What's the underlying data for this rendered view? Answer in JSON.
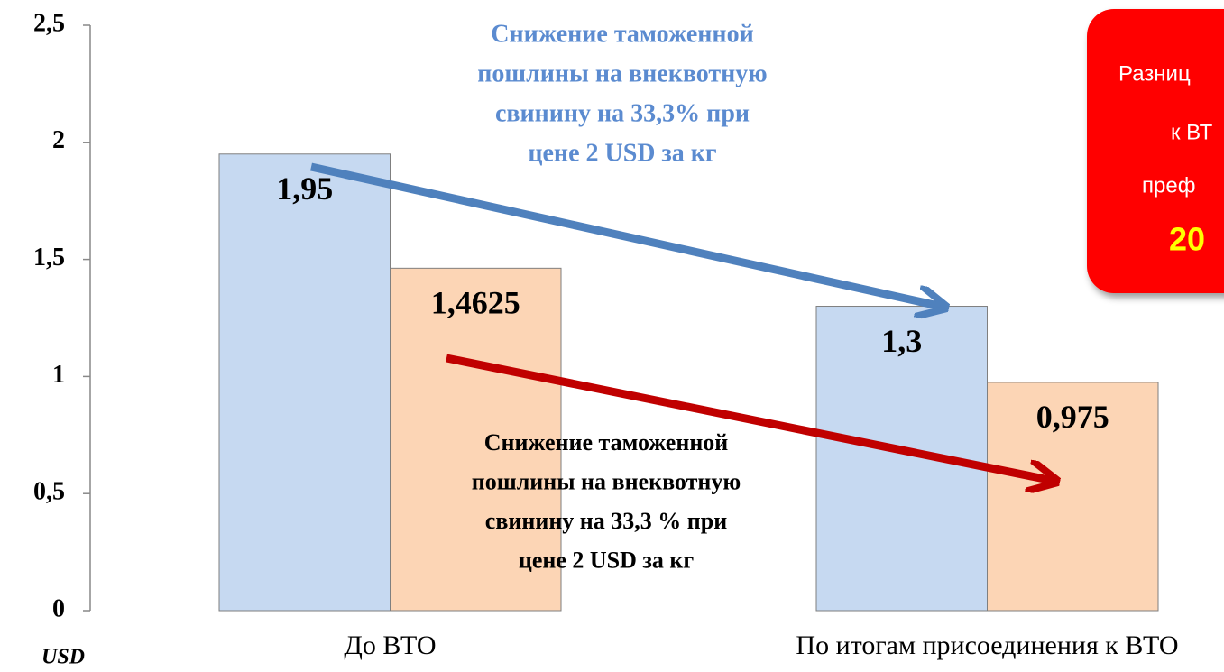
{
  "chart_data": {
    "type": "bar",
    "categories": [
      "До ВТО",
      "По итогам присоединения к ВТО"
    ],
    "series": [
      {
        "color": "#c6d9f1",
        "values": [
          1.95,
          1.3
        ],
        "value_labels": [
          "1,95",
          "1,3"
        ]
      },
      {
        "color": "#fcd5b5",
        "values": [
          1.4625,
          0.975
        ],
        "value_labels": [
          "1,4625",
          "0,975"
        ]
      }
    ],
    "ylim": [
      0,
      2.5
    ],
    "yticks": [
      0,
      {
        "value": 0.5,
        "label": "0,5"
      },
      1,
      {
        "value": 1.5,
        "label": "1,5"
      },
      2,
      {
        "value": 2.5,
        "label": "2,5"
      }
    ],
    "y_label": "USD",
    "annotations": [
      {
        "color": "#5b8bd0",
        "lines": [
          "Снижение таможенной",
          "пошлины на внеквотную",
          "свинину на 33,3% при",
          "цене 2 USD за кг"
        ]
      },
      {
        "color": "#000000",
        "lines": [
          "Снижение таможенной",
          "пошлины на внеквотную",
          "свинину на  33,3 % при",
          "цене 2 USD за кг"
        ]
      }
    ],
    "callout": {
      "lines": [
        "Разниц",
        "к ВТ",
        "преф",
        "20"
      ]
    }
  }
}
